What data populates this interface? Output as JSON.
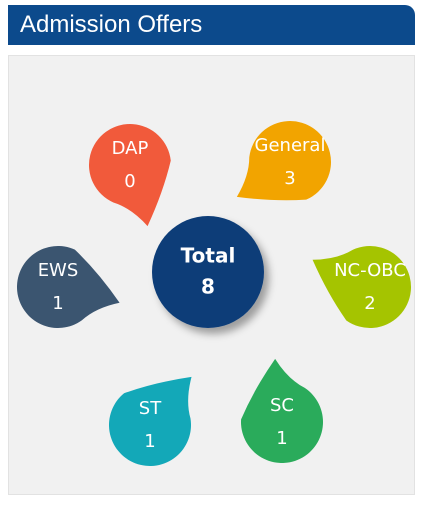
{
  "header": {
    "title": "Admission Offers"
  },
  "center": {
    "label": "Total",
    "value": 8,
    "color": "#0e3d78"
  },
  "petals": [
    {
      "name": "DAP",
      "value": 0,
      "color": "#f15a3b"
    },
    {
      "name": "General",
      "value": 3,
      "color": "#f2a400"
    },
    {
      "name": "EWS",
      "value": 1,
      "color": "#3b5570"
    },
    {
      "name": "NC-OBC",
      "value": 2,
      "color": "#a5c400"
    },
    {
      "name": "ST",
      "value": 1,
      "color": "#13a8b8"
    },
    {
      "name": "SC",
      "value": 1,
      "color": "#2aab5b"
    }
  ]
}
